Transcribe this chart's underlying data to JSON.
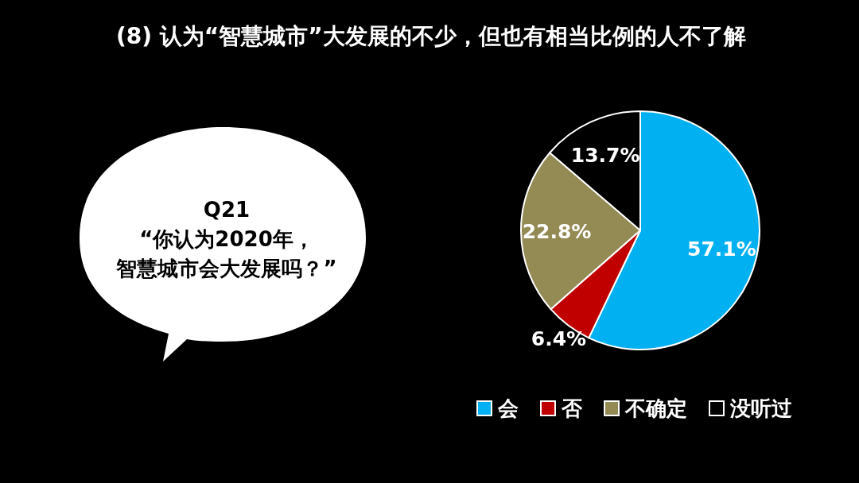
{
  "chart_data": {
    "type": "pie",
    "title": "(8) 认为“智慧城市”大发展的不少，但也有相当比例的人不了解",
    "categories": [
      "会",
      "否",
      "不确定",
      "没听过"
    ],
    "values": [
      57.1,
      6.4,
      22.8,
      13.7
    ],
    "colors": [
      "#00b0f0",
      "#c00000",
      "#948a54",
      "#000000"
    ],
    "value_labels": [
      "57.1%",
      "6.4%",
      "22.8%",
      "13.7%"
    ],
    "legend": "bottom",
    "annotations": [
      "Q21",
      "“你认为2020年，",
      "智慧城市会大发展吗？”"
    ]
  }
}
